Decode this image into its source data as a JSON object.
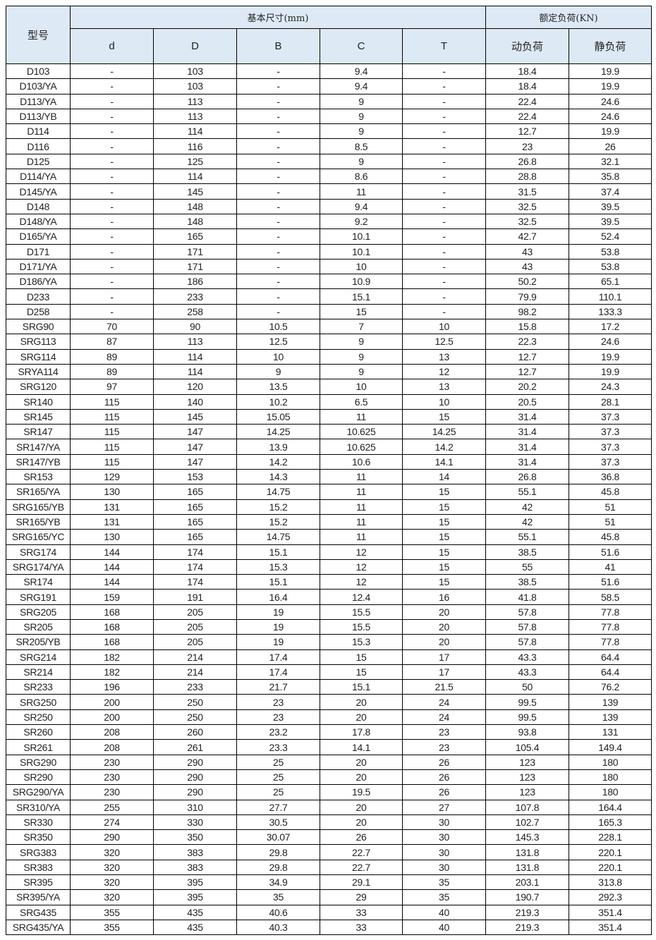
{
  "header": {
    "model": "型号",
    "basic_dimensions": "基本尺寸(mm)",
    "rated_load": "额定负荷(KN)",
    "columns": [
      "d",
      "D",
      "B",
      "C",
      "T",
      "动负荷",
      "静负荷"
    ]
  },
  "header_color": "#dde9f5",
  "rows": [
    [
      "D103",
      "-",
      "103",
      "-",
      "9.4",
      "-",
      "18.4",
      "19.9"
    ],
    [
      "D103/YA",
      "-",
      "103",
      "-",
      "9.4",
      "-",
      "18.4",
      "19.9"
    ],
    [
      "D113/YA",
      "-",
      "113",
      "-",
      "9",
      "-",
      "22.4",
      "24.6"
    ],
    [
      "D113/YB",
      "-",
      "113",
      "-",
      "9",
      "-",
      "22.4",
      "24.6"
    ],
    [
      "D114",
      "-",
      "114",
      "-",
      "9",
      "-",
      "12.7",
      "19.9"
    ],
    [
      "D116",
      "-",
      "116",
      "-",
      "8.5",
      "-",
      "23",
      "26"
    ],
    [
      "D125",
      "-",
      "125",
      "-",
      "9",
      "-",
      "26.8",
      "32.1"
    ],
    [
      "D114/YA",
      "-",
      "114",
      "-",
      "8.6",
      "-",
      "28.8",
      "35.8"
    ],
    [
      "D145/YA",
      "-",
      "145",
      "-",
      "11",
      "-",
      "31.5",
      "37.4"
    ],
    [
      "D148",
      "-",
      "148",
      "-",
      "9.4",
      "-",
      "32.5",
      "39.5"
    ],
    [
      "D148/YA",
      "-",
      "148",
      "-",
      "9.2",
      "-",
      "32.5",
      "39.5"
    ],
    [
      "D165/YA",
      "-",
      "165",
      "-",
      "10.1",
      "-",
      "42.7",
      "52.4"
    ],
    [
      "D171",
      "-",
      "171",
      "-",
      "10.1",
      "-",
      "43",
      "53.8"
    ],
    [
      "D171/YA",
      "-",
      "171",
      "-",
      "10",
      "-",
      "43",
      "53.8"
    ],
    [
      "D186/YA",
      "-",
      "186",
      "-",
      "10.9",
      "-",
      "50.2",
      "65.1"
    ],
    [
      "D233",
      "-",
      "233",
      "-",
      "15.1",
      "-",
      "79.9",
      "110.1"
    ],
    [
      "D258",
      "-",
      "258",
      "-",
      "15",
      "-",
      "98.2",
      "133.3"
    ],
    [
      "SRG90",
      "70",
      "90",
      "10.5",
      "7",
      "10",
      "15.8",
      "17.2"
    ],
    [
      "SRG113",
      "87",
      "113",
      "12.5",
      "9",
      "12.5",
      "22.3",
      "24.6"
    ],
    [
      "SRG114",
      "89",
      "114",
      "10",
      "9",
      "13",
      "12.7",
      "19.9"
    ],
    [
      "SRYA114",
      "89",
      "114",
      "9",
      "9",
      "12",
      "12.7",
      "19.9"
    ],
    [
      "SRG120",
      "97",
      "120",
      "13.5",
      "10",
      "13",
      "20.2",
      "24.3"
    ],
    [
      "SR140",
      "115",
      "140",
      "10.2",
      "6.5",
      "10",
      "20.5",
      "28.1"
    ],
    [
      "SR145",
      "115",
      "145",
      "15.05",
      "11",
      "15",
      "31.4",
      "37.3"
    ],
    [
      "SR147",
      "115",
      "147",
      "14.25",
      "10.625",
      "14.25",
      "31.4",
      "37.3"
    ],
    [
      "SR147/YA",
      "115",
      "147",
      "13.9",
      "10.625",
      "14.2",
      "31.4",
      "37.3"
    ],
    [
      "SR147/YB",
      "115",
      "147",
      "14.2",
      "10.6",
      "14.1",
      "31.4",
      "37.3"
    ],
    [
      "SR153",
      "129",
      "153",
      "14.3",
      "11",
      "14",
      "26.8",
      "36.8"
    ],
    [
      "SR165/YA",
      "130",
      "165",
      "14.75",
      "11",
      "15",
      "55.1",
      "45.8"
    ],
    [
      "SRG165/YB",
      "131",
      "165",
      "15.2",
      "11",
      "15",
      "42",
      "51"
    ],
    [
      "SR165/YB",
      "131",
      "165",
      "15.2",
      "11",
      "15",
      "42",
      "51"
    ],
    [
      "SRG165/YC",
      "130",
      "165",
      "14.75",
      "11",
      "15",
      "55.1",
      "45.8"
    ],
    [
      "SRG174",
      "144",
      "174",
      "15.1",
      "12",
      "15",
      "38.5",
      "51.6"
    ],
    [
      "SRG174/YA",
      "144",
      "174",
      "15.3",
      "12",
      "15",
      "55",
      "41"
    ],
    [
      "SR174",
      "144",
      "174",
      "15.1",
      "12",
      "15",
      "38.5",
      "51.6"
    ],
    [
      "SRG191",
      "159",
      "191",
      "16.4",
      "12.4",
      "16",
      "41.8",
      "58.5"
    ],
    [
      "SRG205",
      "168",
      "205",
      "19",
      "15.5",
      "20",
      "57.8",
      "77.8"
    ],
    [
      "SR205",
      "168",
      "205",
      "19",
      "15.5",
      "20",
      "57.8",
      "77.8"
    ],
    [
      "SR205/YB",
      "168",
      "205",
      "19",
      "15.3",
      "20",
      "57.8",
      "77.8"
    ],
    [
      "SRG214",
      "182",
      "214",
      "17.4",
      "15",
      "17",
      "43.3",
      "64.4"
    ],
    [
      "SR214",
      "182",
      "214",
      "17.4",
      "15",
      "17",
      "43.3",
      "64.4"
    ],
    [
      "SR233",
      "196",
      "233",
      "21.7",
      "15.1",
      "21.5",
      "50",
      "76.2"
    ],
    [
      "SRG250",
      "200",
      "250",
      "23",
      "20",
      "24",
      "99.5",
      "139"
    ],
    [
      "SR250",
      "200",
      "250",
      "23",
      "20",
      "24",
      "99.5",
      "139"
    ],
    [
      "SR260",
      "208",
      "260",
      "23.2",
      "17.8",
      "23",
      "93.8",
      "131"
    ],
    [
      "SR261",
      "208",
      "261",
      "23.3",
      "14.1",
      "23",
      "105.4",
      "149.4"
    ],
    [
      "SRG290",
      "230",
      "290",
      "25",
      "20",
      "26",
      "123",
      "180"
    ],
    [
      "SR290",
      "230",
      "290",
      "25",
      "20",
      "26",
      "123",
      "180"
    ],
    [
      "SRG290/YA",
      "230",
      "290",
      "25",
      "19.5",
      "26",
      "123",
      "180"
    ],
    [
      "SR310/YA",
      "255",
      "310",
      "27.7",
      "20",
      "27",
      "107.8",
      "164.4"
    ],
    [
      "SR330",
      "274",
      "330",
      "30.5",
      "20",
      "30",
      "102.7",
      "165.3"
    ],
    [
      "SR350",
      "290",
      "350",
      "30.07",
      "26",
      "30",
      "145.3",
      "228.1"
    ],
    [
      "SRG383",
      "320",
      "383",
      "29.8",
      "22.7",
      "30",
      "131.8",
      "220.1"
    ],
    [
      "SR383",
      "320",
      "383",
      "29.8",
      "22.7",
      "30",
      "131.8",
      "220.1"
    ],
    [
      "SR395",
      "320",
      "395",
      "34.9",
      "29.1",
      "35",
      "203.1",
      "313.8"
    ],
    [
      "SR395/YA",
      "320",
      "395",
      "35",
      "29",
      "35",
      "190.7",
      "292.3"
    ],
    [
      "SRG435",
      "355",
      "435",
      "40.6",
      "33",
      "40",
      "219.3",
      "351.4"
    ],
    [
      "SRG435/YA",
      "355",
      "435",
      "40.3",
      "33",
      "40",
      "219.3",
      "351.4"
    ]
  ]
}
